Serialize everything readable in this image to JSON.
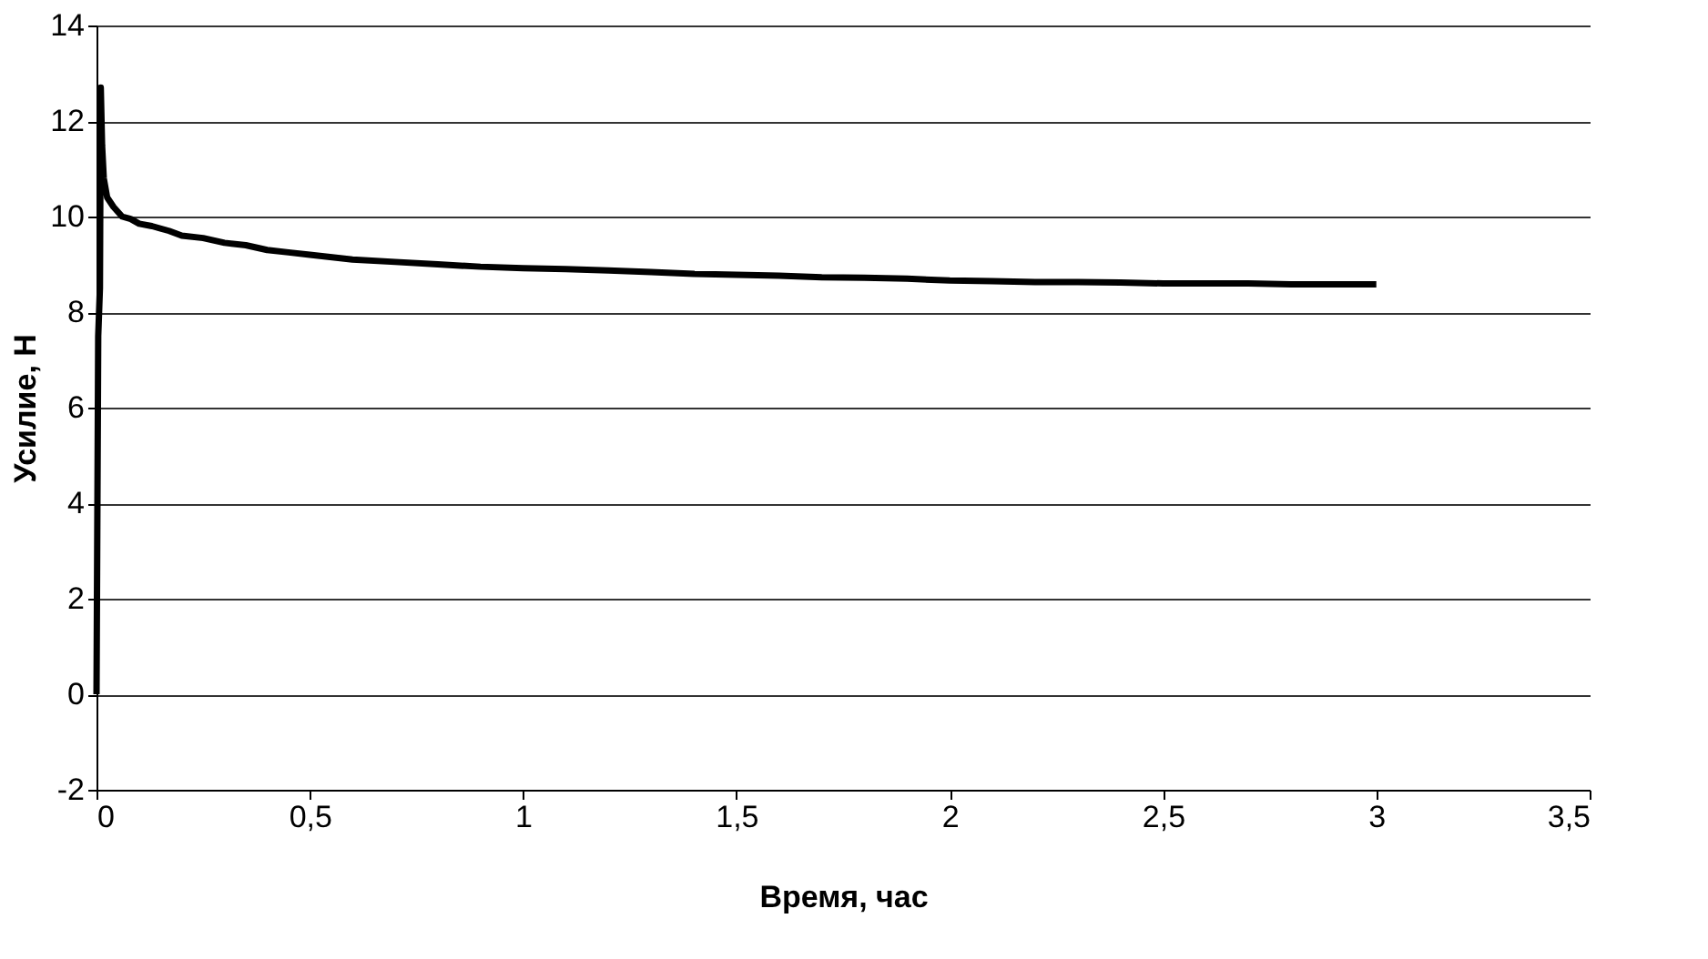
{
  "chart_data": {
    "type": "line",
    "xlabel": "Время, час",
    "ylabel": "Усилие, Н",
    "x": [
      0,
      0.004,
      0.008,
      0.01,
      0.013,
      0.017,
      0.025,
      0.04,
      0.06,
      0.08,
      0.1,
      0.13,
      0.17,
      0.2,
      0.25,
      0.3,
      0.35,
      0.4,
      0.45,
      0.5,
      0.6,
      0.7,
      0.8,
      0.9,
      1.0,
      1.1,
      1.2,
      1.3,
      1.4,
      1.5,
      1.6,
      1.7,
      1.8,
      1.9,
      2.0,
      2.1,
      2.2,
      2.3,
      2.4,
      2.5,
      2.6,
      2.7,
      2.8,
      2.9,
      3.0
    ],
    "series": [
      {
        "color": "#000000",
        "values": [
          0,
          7.5,
          8.5,
          12.7,
          11.5,
          10.8,
          10.4,
          10.2,
          10.0,
          9.95,
          9.85,
          9.8,
          9.7,
          9.6,
          9.55,
          9.45,
          9.4,
          9.3,
          9.25,
          9.2,
          9.1,
          9.05,
          9.0,
          8.95,
          8.92,
          8.9,
          8.87,
          8.84,
          8.8,
          8.78,
          8.76,
          8.73,
          8.72,
          8.7,
          8.66,
          8.65,
          8.63,
          8.63,
          8.62,
          8.6,
          8.6,
          8.6,
          8.58,
          8.58,
          8.58
        ]
      }
    ],
    "xlim": [
      0,
      3.5
    ],
    "ylim": [
      -2,
      14
    ],
    "xticks": [
      0,
      {
        "value": 0.5,
        "label": "0,5"
      },
      1,
      {
        "value": 1.5,
        "label": "1,5"
      },
      2,
      {
        "value": 2.5,
        "label": "2,5"
      },
      3,
      {
        "value": 3.5,
        "label": "3,5"
      }
    ],
    "yticks": [
      -2,
      0,
      2,
      4,
      6,
      8,
      10,
      12,
      14
    ],
    "grid": "y",
    "marker": "none",
    "line_style": "solid"
  }
}
